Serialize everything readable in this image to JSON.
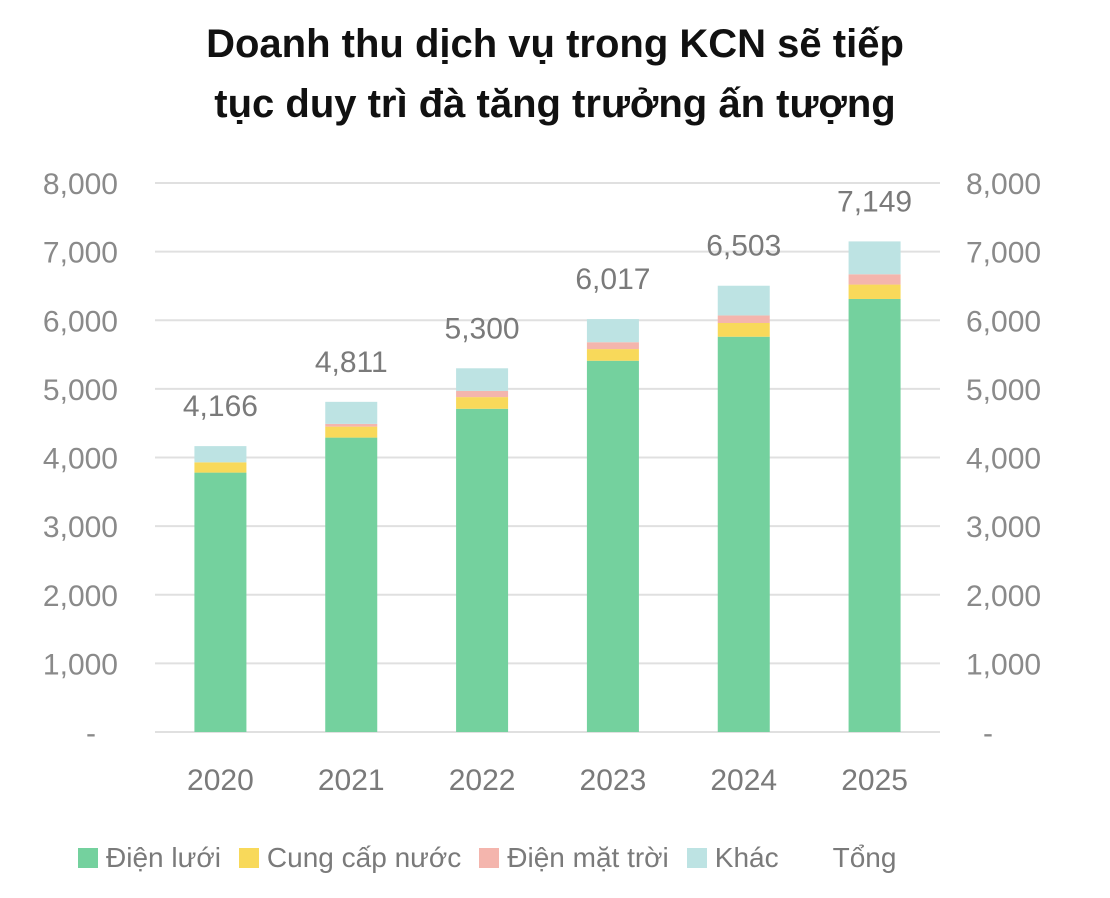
{
  "title": {
    "line1": "Doanh thu dịch vụ trong KCN sẽ tiếp",
    "line2": "tục duy trì đà tăng trưởng ấn tượng"
  },
  "chart_data": {
    "type": "bar",
    "stacked": true,
    "categories": [
      "2020",
      "2021",
      "2022",
      "2023",
      "2024",
      "2025"
    ],
    "series": [
      {
        "name": "Điện lưới",
        "color": "#74d19e",
        "values": [
          3780,
          4290,
          4710,
          5410,
          5760,
          6310
        ]
      },
      {
        "name": "Cung cấp nước",
        "color": "#f8d95a",
        "values": [
          150,
          160,
          170,
          170,
          200,
          210
        ]
      },
      {
        "name": "Điện mặt trời",
        "color": "#f4b5ad",
        "values": [
          0,
          40,
          90,
          100,
          110,
          150
        ]
      },
      {
        "name": "Khác",
        "color": "#bde3e3",
        "values": [
          236,
          321,
          330,
          337,
          433,
          479
        ]
      }
    ],
    "totals": {
      "name": "Tổng",
      "labels": [
        "4,166",
        "4,811",
        "5,300",
        "6,017",
        "6,503",
        "7,149"
      ]
    },
    "ylim": [
      0,
      8000
    ],
    "y_ticks": [
      0,
      1000,
      2000,
      3000,
      4000,
      5000,
      6000,
      7000,
      8000
    ],
    "y_tick_labels": [
      "-",
      "1,000",
      "2,000",
      "3,000",
      "4,000",
      "5,000",
      "6,000",
      "7,000",
      "8,000"
    ],
    "secondary_axis": "right",
    "grid": true,
    "legend_position": "bottom"
  }
}
